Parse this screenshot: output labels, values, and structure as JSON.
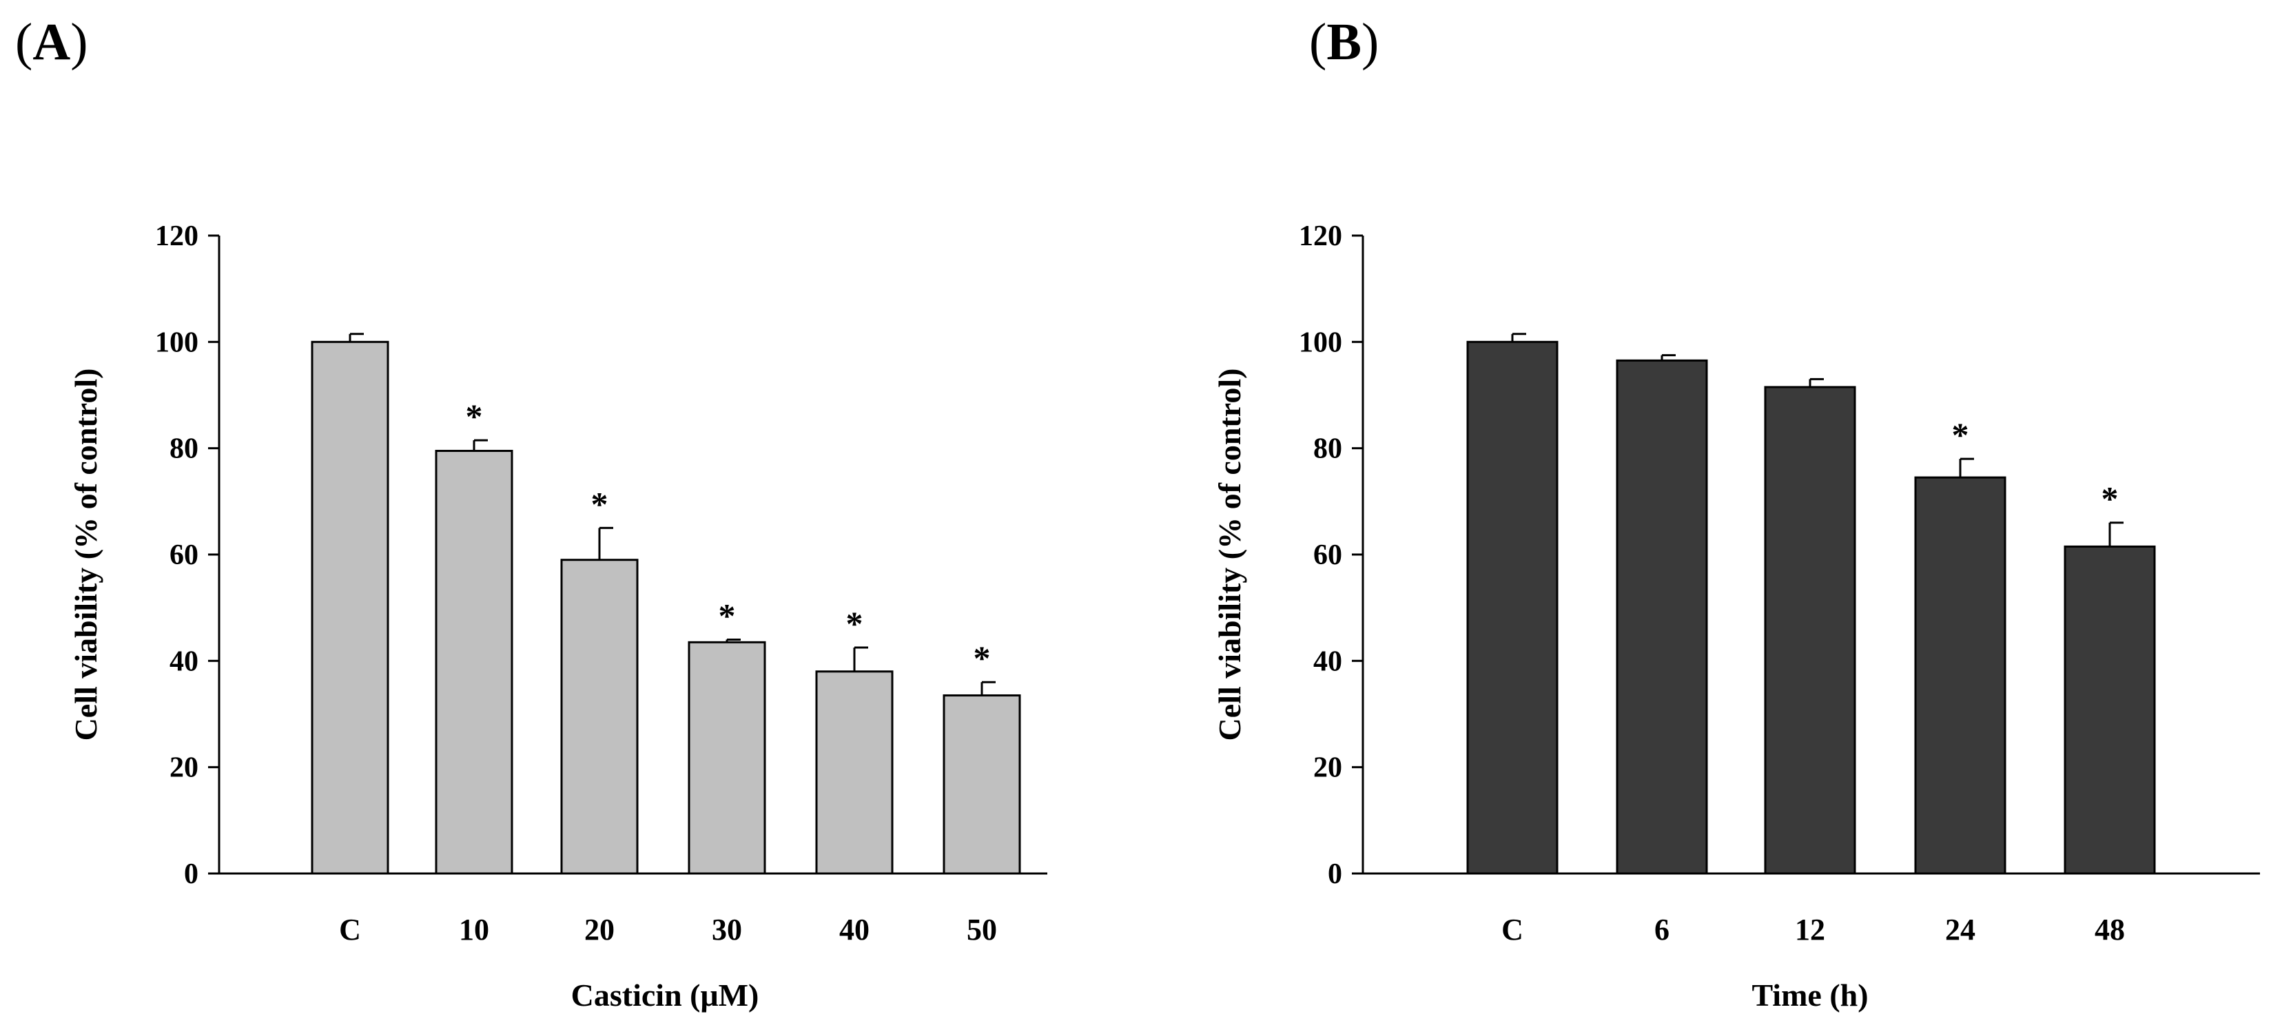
{
  "panels": [
    {
      "label_open": "(",
      "label_letter": "A",
      "label_close": ")"
    },
    {
      "label_open": "(",
      "label_letter": "B",
      "label_close": ")"
    }
  ],
  "chart_data": [
    {
      "type": "bar",
      "title": "",
      "xlabel": "Casticin (μM)",
      "ylabel": "Cell viability (% of control)",
      "categories": [
        "C",
        "10",
        "20",
        "30",
        "40",
        "50"
      ],
      "values": [
        100,
        79.5,
        59,
        43.5,
        38,
        33.5
      ],
      "errors": [
        1.5,
        2,
        6,
        0.5,
        4.5,
        2.5
      ],
      "significance": [
        "",
        "*",
        "*",
        "*",
        "*",
        "*"
      ],
      "ylim": [
        0,
        120
      ],
      "yticks": [
        0,
        20,
        40,
        60,
        80,
        100,
        120
      ],
      "bar_color": "#c0c0c0",
      "grid": false
    },
    {
      "type": "bar",
      "title": "",
      "xlabel": "Time (h)",
      "ylabel": "Cell viability (% of control)",
      "categories": [
        "C",
        "6",
        "12",
        "24",
        "48"
      ],
      "values": [
        100,
        96.5,
        91.5,
        74.5,
        61.5
      ],
      "errors": [
        1.5,
        1,
        1.5,
        3.5,
        4.5
      ],
      "significance": [
        "",
        "",
        "",
        "*",
        "*"
      ],
      "ylim": [
        0,
        120
      ],
      "yticks": [
        0,
        20,
        40,
        60,
        80,
        100,
        120
      ],
      "bar_color": "#3a3a3a",
      "grid": false
    }
  ]
}
